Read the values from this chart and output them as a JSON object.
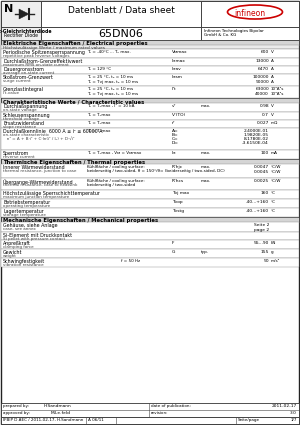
{
  "title_main": "Datenblatt / Data sheet",
  "part_number": "65DN06",
  "package_code": "N",
  "company_sub": "Infineon Technologies Bipolar\nGmbH & Co. KG",
  "subtitle1": "Netz-Gleichrichterdiode\nRectifier Diode",
  "bg_color": "#ffffff",
  "section1_title": "Elektrische Eigenschaften / Electrical properties",
  "section1_sub": "Höchstzulässige Werte / maximum rated values",
  "sec1_rows": [
    {
      "de": "Periodische Spitzensperrspannung",
      "en": "repetitive peak reverse voltages",
      "cond": "Tₕ = -40°C ... Tₕ max.",
      "sym": "Vᴍmax",
      "qual": "",
      "val": "600",
      "unit": "V"
    },
    {
      "de": "Durchlaßstrom-Grenzeffektivwert",
      "en": "maximum RMS on-state current",
      "cond": "",
      "sym": "Iᴍmax",
      "qual": "",
      "val": "13000",
      "unit": "A"
    },
    {
      "de": "Dauergronsstrom",
      "en": "average on-state current",
      "cond": "Tₕ = 129 °C",
      "sym": "Iᴍav",
      "qual": "",
      "val": "6470",
      "unit": "A"
    },
    {
      "de": "Stoßstrom-Grenzwert",
      "en": "surge current",
      "cond": "Tₕ = 25 °C, tₚ = 10 ms\nTₕ = Tvj max, tₚ = 10 ms",
      "sym": "Iᴍsm",
      "qual": "",
      "val": "100000\n90000",
      "unit": "A\nA"
    },
    {
      "de": "Grenzlastintegral",
      "en": "I²t-value",
      "cond": "Tₕ = 25 °C, tₚ = 10 ms\nTₕ = Tvj max, tₚ = 10 ms",
      "sym": "I²t",
      "qual": "",
      "val": "63000\n40000",
      "unit": "10⁴A²s\n10⁴A²s"
    }
  ],
  "section2_title": "Charakteristische Werte / Characteristic values",
  "sec2_rows": [
    {
      "de": "Durchlaßspannung",
      "en": "on-state voltage",
      "cond": "Tₕ = Tᵥmax , Iᵀ = 10 kA",
      "sym": "vᵀ",
      "qual": "max.",
      "val": "0.98",
      "unit": "V"
    },
    {
      "de": "Schleusenspannung",
      "en": "threshold voltage",
      "cond": "Tₕ = Tᵥmax",
      "sym": "Vᵀ(TO)",
      "qual": "",
      "val": "0.7",
      "unit": "V"
    },
    {
      "de": "Ersatzwiderstand",
      "en": "slope resistance",
      "cond": "Tₕ = Tᵥmax",
      "sym": "rᵀ",
      "qual": "",
      "val": "0.027",
      "unit": "mΩ"
    },
    {
      "de": "Durchlaßkennlinie  6000 A ≤ iᵀ ≤ 60000 A",
      "en": "on-state characteristic\n   nᵀ = A + B·iᵀ + C·ln(iᵀ / I₀) + D·√iᵀ",
      "cond": "Tₕ = Tᵥmax",
      "sym": "A=\nB=\nC=\nD=",
      "qual": "",
      "val": "2.4000E-01\n1.9820E-05\n8.1780E-02\n-3.6150E-04",
      "unit": ""
    },
    {
      "de": "Sperrstrom",
      "en": "reverse current",
      "cond": "Tₕ = Tᵥmax , Vᴍ = Vᴍmax",
      "sym": "Iᴍ",
      "qual": "max.",
      "val": "100",
      "unit": "mA"
    }
  ],
  "section3_title": "Thermische Eigenschaften / Thermal properties",
  "sec3_rows": [
    {
      "de": "Innerer Wärmewiderstand",
      "en": "thermal resistance, junction to case",
      "cond": "Kühlfläche / cooling surface:\nbeiderseitig / two-sided, θ = 150°/θ= (beiderseitig / two-sided, DC)",
      "sym": "Rᵀhjc",
      "qual": "max.",
      "val": "0.0047\n0.0045",
      "unit": "°C/W\n°C/W"
    },
    {
      "de": "Übergange-Wärmewiderstand",
      "en": "thermal resistance, case to heatsink",
      "cond": "Kühlfläche / cooling surface:\nbeiderseitig / two-sided",
      "sym": "Rᵀhcs",
      "qual": "max.",
      "val": "0.0025",
      "unit": "°C/W"
    },
    {
      "de": "Höchstzulässige Sperrschichttemperatur",
      "en": "maximum junction temperature",
      "cond": "",
      "sym": "Tvj max",
      "qual": "",
      "val": "160",
      "unit": "°C"
    },
    {
      "de": "Betriebstemperatur",
      "en": "operating temperature",
      "cond": "",
      "sym": "Tvop",
      "qual": "",
      "val": "-40...+160",
      "unit": "°C"
    },
    {
      "de": "Lagertemperatur",
      "en": "storage temperature",
      "cond": "",
      "sym": "Tvstg",
      "qual": "",
      "val": "-40...+160",
      "unit": "°C"
    }
  ],
  "section4_title": "Mechanische Eigenschaften / Mechanical properties",
  "sec4_rows": [
    {
      "de": "Gehäuse, siehe Anlage",
      "en": "case, see annex",
      "cond": "",
      "sym": "",
      "qual": "",
      "val": "Seite 2\npage 2",
      "unit": ""
    },
    {
      "de": "Si-Element mit Druckkontakt",
      "en": "Si pellet with pressure contact",
      "cond": "",
      "sym": "",
      "qual": "",
      "val": "",
      "unit": ""
    },
    {
      "de": "Anpreßkraft",
      "en": "clamping force",
      "cond": "",
      "sym": "F",
      "qual": "",
      "val": "55...90",
      "unit": "kN"
    },
    {
      "de": "Gewicht",
      "en": "weight",
      "cond": "",
      "sym": "G",
      "qual": "typ.",
      "val": "155",
      "unit": "g"
    },
    {
      "de": "Schwingfestigkeit",
      "en": "vibration resistance",
      "cond": "f = 50 Hz",
      "sym": "",
      "qual": "",
      "val": "50",
      "unit": "m/s²"
    }
  ],
  "footer_prepared_label": "prepared by:",
  "footer_prepared": "H.Sandmann",
  "footer_approved_label": "approved by:",
  "footer_approved": "M.Le.feld",
  "footer_date_label": "date of publication:",
  "footer_date": "2011-02-17",
  "footer_revision_label": "revision:",
  "footer_revision": "3.0",
  "footer_doc": "IFBIP D AEC / 2011-02-17, H.Sandmann",
  "footer_code": "A 06/11",
  "footer_page_label": "Seite/page",
  "footer_page": "1/7"
}
